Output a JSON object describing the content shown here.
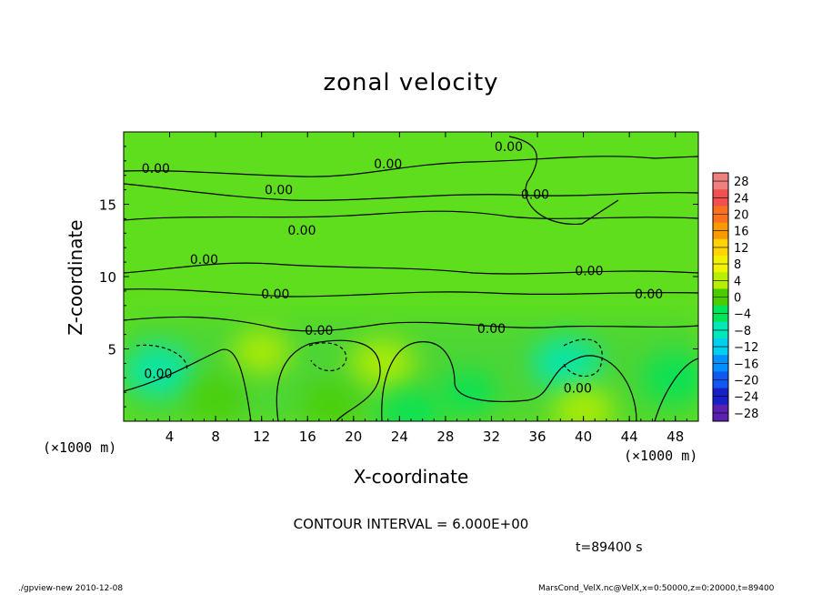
{
  "chart_data": {
    "type": "heatmap",
    "title": "zonal velocity",
    "xlabel": "X-coordinate",
    "ylabel": "Z-coordinate",
    "x_unit": "(×1000 m)",
    "y_unit": "(×1000 m)",
    "xlim": [
      0,
      50
    ],
    "ylim": [
      0,
      20
    ],
    "x_ticks": [
      4,
      8,
      12,
      16,
      20,
      24,
      28,
      32,
      36,
      40,
      44,
      48
    ],
    "y_ticks": [
      5,
      10,
      15
    ],
    "colorbar": {
      "labels": [
        "28",
        "24",
        "20",
        "16",
        "12",
        "8",
        "4",
        "0",
        "−4",
        "−8",
        "−12",
        "−16",
        "−20",
        "−24",
        "−28"
      ],
      "colors": [
        "#f08080",
        "#f05050",
        "#f87020",
        "#f89a00",
        "#ffd400",
        "#f2f200",
        "#b8ee00",
        "#4ccc00",
        "#00e45a",
        "#00e8b8",
        "#00d0ee",
        "#0090ff",
        "#1058f0",
        "#1820c8",
        "#5a20b0"
      ]
    },
    "contour_label": "0.00",
    "contour_interval_text": "CONTOUR INTERVAL = 6.000E+00",
    "time_text": "t=89400 s",
    "blobs": [
      {
        "x": 3,
        "z": 3.5,
        "v": -6
      },
      {
        "x": 22.5,
        "z": 4,
        "v": 5
      },
      {
        "x": 38.5,
        "z": 4,
        "v": -6
      },
      {
        "x": 48,
        "z": 3,
        "v": -5
      },
      {
        "x": 12,
        "z": 4.8,
        "v": 3
      },
      {
        "x": 25,
        "z": 0.5,
        "v": -4
      },
      {
        "x": 40,
        "z": 0.8,
        "v": 4
      },
      {
        "x": 30,
        "z": 2,
        "v": -2
      },
      {
        "x": 8,
        "z": 1.5,
        "v": 2
      },
      {
        "x": 18,
        "z": 1.2,
        "v": 2
      }
    ]
  },
  "footer": {
    "left": "./gpview-new  2010-12-08",
    "right": "MarsCond_VelX.nc@VelX,x=0:50000,z=0:20000,t=89400"
  }
}
